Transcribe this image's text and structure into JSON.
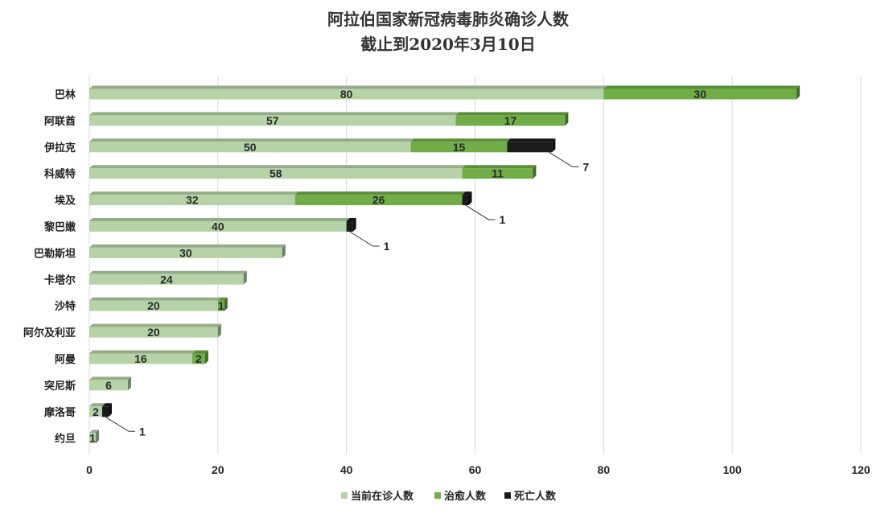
{
  "chart_data": {
    "type": "bar",
    "orientation": "horizontal",
    "stacked": true,
    "title": "阿拉伯国家新冠病毒肺炎确诊人数",
    "subtitle": "截止到2020年3月10日",
    "categories": [
      "巴林",
      "阿联酋",
      "伊拉克",
      "科威特",
      "埃及",
      "黎巴嫩",
      "巴勒斯坦",
      "卡塔尔",
      "沙特",
      "阿尔及利亚",
      "阿曼",
      "突尼斯",
      "摩洛哥",
      "约旦"
    ],
    "series": [
      {
        "name": "当前在诊人数",
        "color": "#b5d3a6",
        "values": [
          80,
          57,
          50,
          58,
          32,
          40,
          30,
          24,
          20,
          20,
          16,
          6,
          2,
          1
        ]
      },
      {
        "name": "治愈人数",
        "color": "#70ad47",
        "values": [
          30,
          17,
          15,
          11,
          26,
          0,
          0,
          0,
          1,
          0,
          2,
          0,
          0,
          0
        ]
      },
      {
        "name": "死亡人数",
        "color": "#1a1a1a",
        "values": [
          0,
          0,
          7,
          0,
          1,
          1,
          0,
          0,
          0,
          0,
          0,
          0,
          1,
          0
        ]
      }
    ],
    "xlim": [
      0,
      120
    ],
    "x_ticks": [
      "0",
      "20",
      "40",
      "60",
      "80",
      "100",
      "120"
    ],
    "grid": true,
    "legend_position": "bottom"
  }
}
